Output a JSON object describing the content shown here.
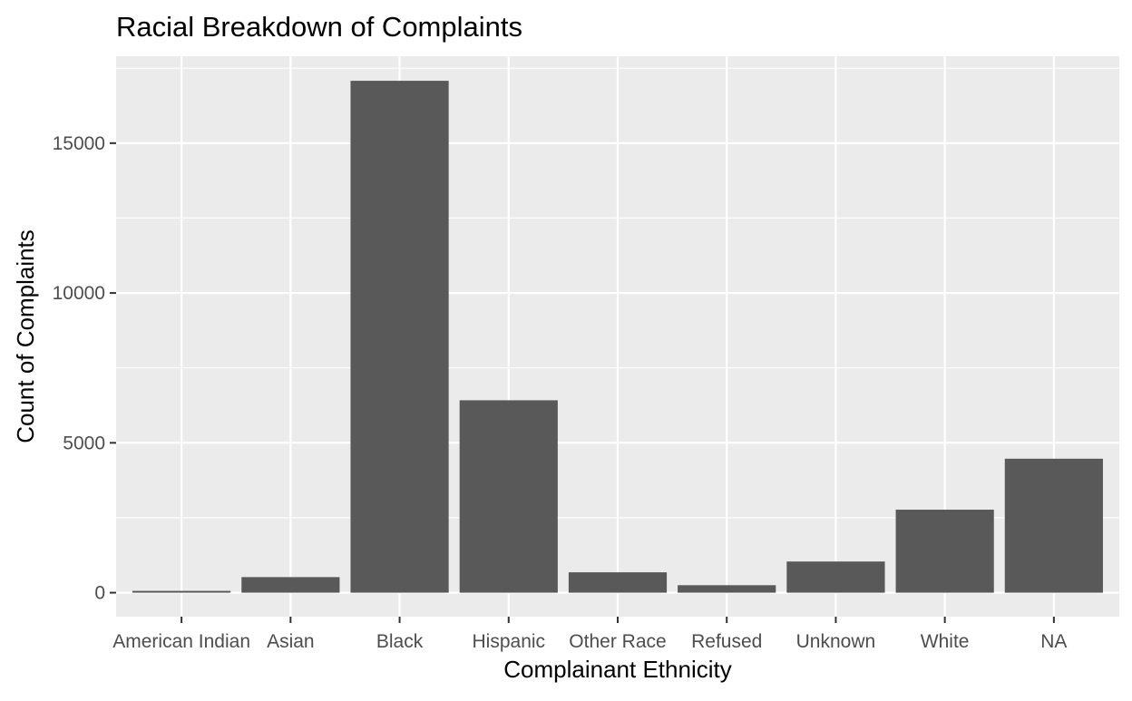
{
  "chart_data": {
    "type": "bar",
    "title": "Racial Breakdown of Complaints",
    "xlabel": "Complainant Ethnicity",
    "ylabel": "Count of Complaints",
    "categories": [
      "American Indian",
      "Asian",
      "Black",
      "Hispanic",
      "Other Race",
      "Refused",
      "Unknown",
      "White",
      "NA"
    ],
    "values": [
      60,
      520,
      17080,
      6420,
      680,
      250,
      1040,
      2770,
      4470
    ],
    "ylim": [
      -800,
      17900
    ],
    "yticks": [
      0,
      5000,
      10000,
      15000
    ],
    "ytick_labels": [
      "0",
      "5000",
      "10000",
      "15000"
    ],
    "grid": true,
    "legend": "none",
    "colors": {
      "panel_background": "#EBEBEB",
      "grid_major": "#FFFFFF",
      "bar_fill": "#595959",
      "tick_text": "#4D4D4D",
      "axis_title_text": "#000000"
    }
  }
}
